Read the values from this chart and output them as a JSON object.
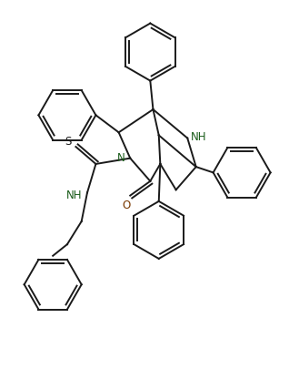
{
  "bg_color": "#ffffff",
  "line_color": "#1a1a1a",
  "label_color_N": "#1a5c1a",
  "label_color_O": "#7a3800",
  "label_color_S": "#1a1a1a",
  "line_width": 1.4,
  "figsize": [
    3.18,
    4.06
  ],
  "dpi": 100,
  "xlim": [
    0,
    10
  ],
  "ylim": [
    0,
    12.8
  ]
}
